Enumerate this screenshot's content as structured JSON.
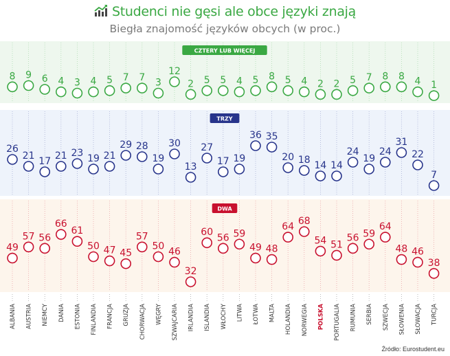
{
  "header": {
    "title": "Studenci nie gęsi ale obce języki znają",
    "subtitle": "Biegła znajomość języków obcych (w proc.)",
    "source": "Źródło: Eurostudent.eu"
  },
  "chart_data": {
    "type": "scatter",
    "title": "Studenci nie gęsi ale obce języki znają",
    "subtitle": "Biegła znajomość języków obcych (w proc.)",
    "highlight_category": "POLSKA",
    "categories": [
      "ALBANIA",
      "AUSTRIA",
      "NIEMCY",
      "DANIA",
      "ESTONIA",
      "FINLANDIA",
      "FRANCJA",
      "GRUZJA",
      "CHORWACJA",
      "WĘGRY",
      "SZWAJCARIA",
      "IRLANDIA",
      "ISLANDIA",
      "WŁOCHY",
      "LITWA",
      "ŁOTWA",
      "MALTA",
      "HOLANDIA",
      "NORWEGIA",
      "POLSKA",
      "PORTUGALIA",
      "RUMUNIA",
      "SERBIA",
      "SZWECJA",
      "SŁOWENIA",
      "SŁOWACJA",
      "TURCJA"
    ],
    "series": [
      {
        "name": "CZTERY LUB WIĘCEJ",
        "color": "#3aa843",
        "band_color": "#eef7ee",
        "ylim": [
          0,
          12
        ],
        "values": [
          8,
          9,
          6,
          4,
          3,
          4,
          5,
          7,
          7,
          3,
          12,
          2,
          5,
          5,
          4,
          5,
          8,
          5,
          4,
          2,
          2,
          5,
          7,
          8,
          8,
          4,
          1
        ]
      },
      {
        "name": "TRZY",
        "color": "#27348b",
        "band_color": "#eef3fb",
        "ylim": [
          7,
          36
        ],
        "values": [
          26,
          21,
          17,
          21,
          23,
          19,
          21,
          29,
          28,
          19,
          30,
          13,
          27,
          17,
          19,
          36,
          35,
          20,
          18,
          14,
          14,
          24,
          19,
          24,
          31,
          22,
          7
        ]
      },
      {
        "name": "DWA",
        "color": "#c8102e",
        "band_color": "#fdf5ec",
        "ylim": [
          32,
          68
        ],
        "values": [
          49,
          57,
          56,
          66,
          61,
          50,
          47,
          45,
          57,
          50,
          46,
          32,
          60,
          56,
          59,
          49,
          48,
          64,
          68,
          54,
          51,
          56,
          59,
          64,
          48,
          46,
          38
        ]
      }
    ]
  }
}
